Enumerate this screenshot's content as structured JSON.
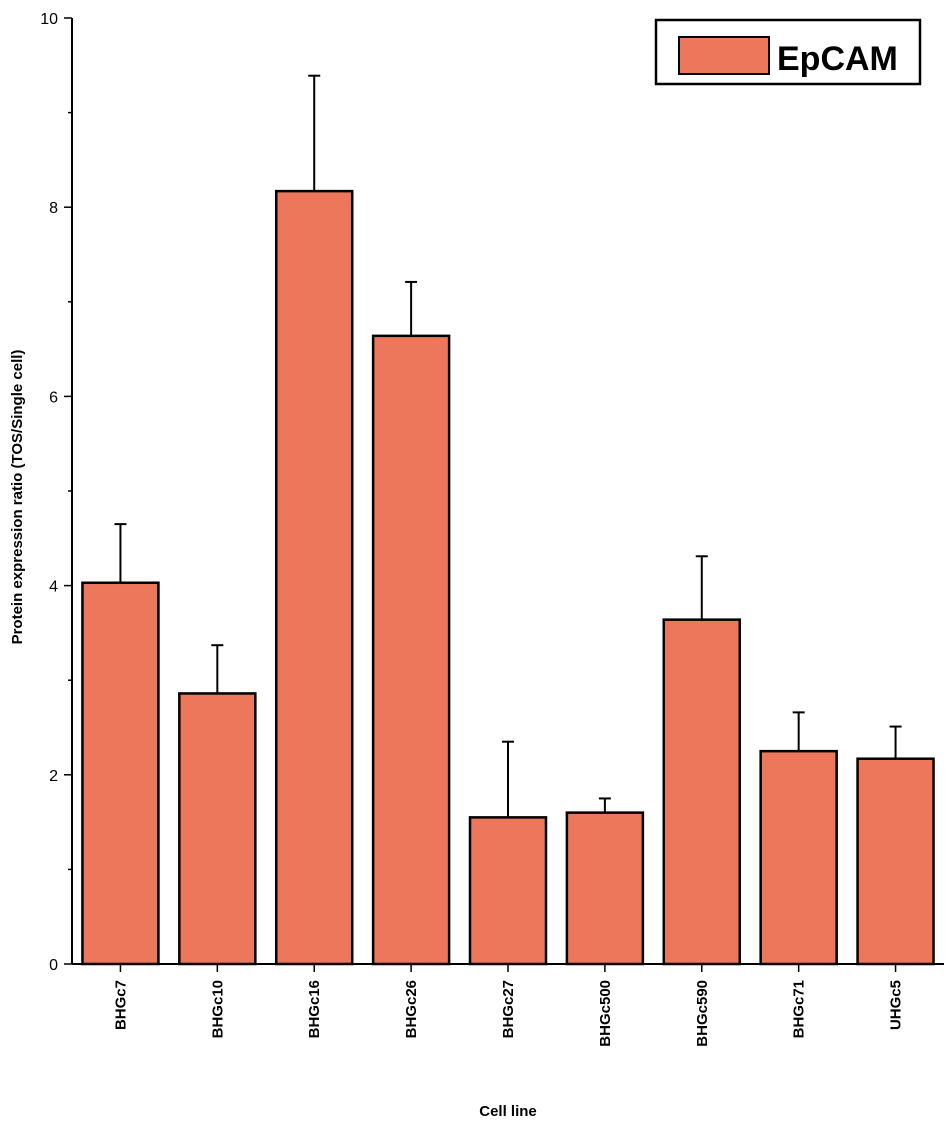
{
  "chart_data": {
    "type": "bar",
    "categories": [
      "BHGc7",
      "BHGc10",
      "BHGc16",
      "BHGc26",
      "BHGc27",
      "BHGc500",
      "BHGc590",
      "BHGc71",
      "UHGc5"
    ],
    "series": [
      {
        "name": "EpCAM",
        "values": [
          4.03,
          2.86,
          8.17,
          6.64,
          1.55,
          1.6,
          3.64,
          2.25,
          2.17
        ],
        "error_plus": [
          0.62,
          0.51,
          1.22,
          0.57,
          0.8,
          0.15,
          0.67,
          0.41,
          0.34
        ],
        "color": "#ec775a"
      }
    ],
    "xlabel": "Cell line",
    "ylabel": "Protein expression ratio (TOS/Single cell)",
    "ylim": [
      0,
      10
    ],
    "yticks": [
      0,
      2,
      4,
      6,
      8,
      10
    ],
    "grid": false,
    "legend_position": "top-right"
  }
}
